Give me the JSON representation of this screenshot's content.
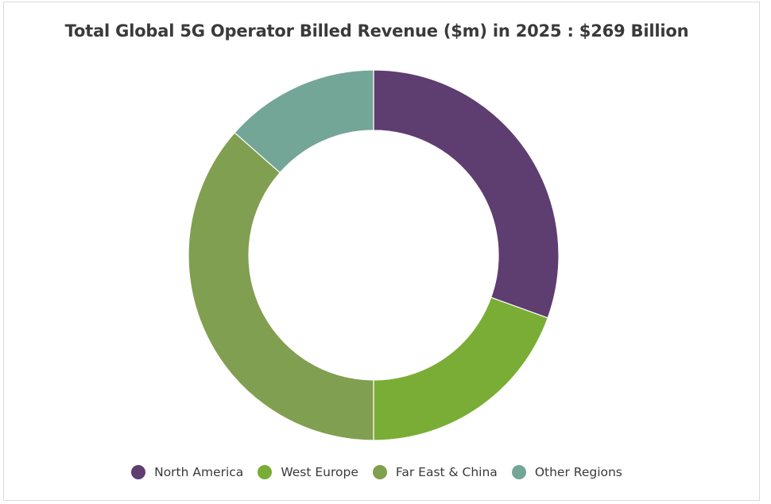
{
  "chart_data": {
    "type": "pie",
    "variant": "donut",
    "title": "Total Global 5G Operator Billed Revenue ($m) in 2025 : $269 Billion",
    "categories": [
      "North America",
      "West Europe",
      "Far East & China",
      "Other Regions"
    ],
    "values": [
      30.5,
      19.5,
      36.5,
      13.5
    ],
    "colors": [
      "#5e3d70",
      "#7aad35",
      "#819f50",
      "#74a697"
    ],
    "legend_position": "bottom"
  }
}
